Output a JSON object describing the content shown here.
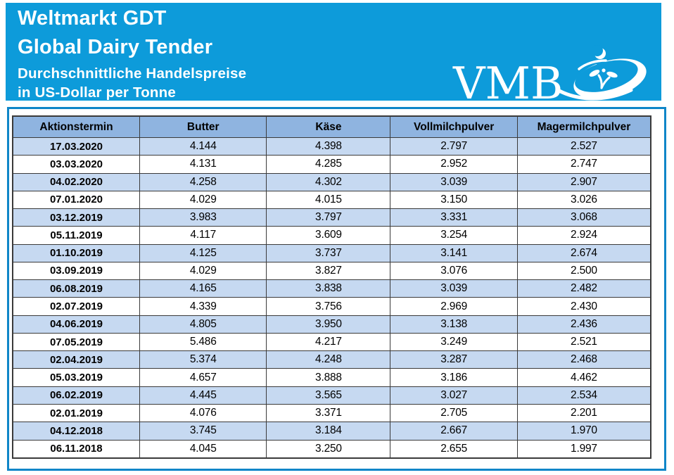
{
  "banner": {
    "title_line1": "Weltmarkt GDT",
    "title_line2": "Global Dairy Tender",
    "subtitle_line1": "Durchschnittliche Handelspreise",
    "subtitle_line2": "in US-Dollar per Tonne",
    "logo_text": "VMB",
    "logo_icon": "swoosh-ellipse-with-sprout-and-crescent"
  },
  "colors": {
    "banner_blue": "#0D9BDA",
    "frame_blue": "#0F86C8",
    "header_row_bg": "#8FB4E0",
    "stripe_row_bg": "#C6D9F1",
    "table_border": "#3A3A3A",
    "banner_text": "#FFFFFF",
    "table_text": "#000000"
  },
  "table": {
    "columns": [
      "Aktionstermin",
      "Butter",
      "Käse",
      "Vollmilchpulver",
      "Magermilchpulver"
    ],
    "rows": [
      [
        "17.03.2020",
        "4.144",
        "4.398",
        "2.797",
        "2.527"
      ],
      [
        "03.03.2020",
        "4.131",
        "4.285",
        "2.952",
        "2.747"
      ],
      [
        "04.02.2020",
        "4.258",
        "4.302",
        "3.039",
        "2.907"
      ],
      [
        "07.01.2020",
        "4.029",
        "4.015",
        "3.150",
        "3.026"
      ],
      [
        "03.12.2019",
        "3.983",
        "3.797",
        "3.331",
        "3.068"
      ],
      [
        "05.11.2019",
        "4.117",
        "3.609",
        "3.254",
        "2.924"
      ],
      [
        "01.10.2019",
        "4.125",
        "3.737",
        "3.141",
        "2.674"
      ],
      [
        "03.09.2019",
        "4.029",
        "3.827",
        "3.076",
        "2.500"
      ],
      [
        "06.08.2019",
        "4.165",
        "3.838",
        "3.039",
        "2.482"
      ],
      [
        "02.07.2019",
        "4.339",
        "3.756",
        "2.969",
        "2.430"
      ],
      [
        "04.06.2019",
        "4.805",
        "3.950",
        "3.138",
        "2.436"
      ],
      [
        "07.05.2019",
        "5.486",
        "4.217",
        "3.249",
        "2.521"
      ],
      [
        "02.04.2019",
        "5.374",
        "4.248",
        "3.287",
        "2.468"
      ],
      [
        "05.03.2019",
        "4.657",
        "3.888",
        "3.186",
        "4.462"
      ],
      [
        "06.02.2019",
        "4.445",
        "3.565",
        "3.027",
        "2.534"
      ],
      [
        "02.01.2019",
        "4.076",
        "3.371",
        "2.705",
        "2.201"
      ],
      [
        "04.12.2018",
        "3.745",
        "3.184",
        "2.667",
        "1.970"
      ],
      [
        "06.11.2018",
        "4.045",
        "3.250",
        "2.655",
        "1.997"
      ]
    ]
  }
}
